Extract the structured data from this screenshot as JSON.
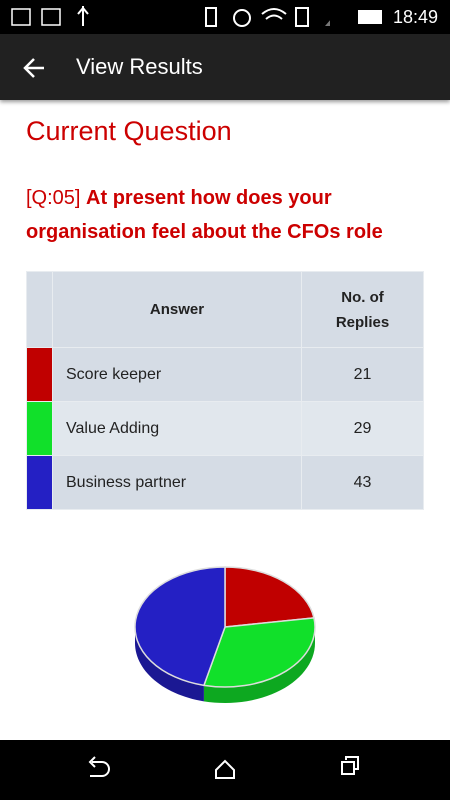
{
  "status_bar": {
    "time": "18:49"
  },
  "app_bar": {
    "title": "View Results"
  },
  "section_title": "Current Question",
  "question": {
    "prefix": "[Q:05]",
    "text": "At present how does your organisation feel about the CFOs role"
  },
  "table": {
    "headers": [
      "Answer",
      "No. of Replies"
    ],
    "rows": [
      {
        "answer": "Score keeper",
        "replies": 21,
        "color": "#c00000"
      },
      {
        "answer": "Value Adding",
        "replies": 29,
        "color": "#11e02a"
      },
      {
        "answer": "Business partner",
        "replies": 43,
        "color": "#2420c4"
      }
    ]
  },
  "chart_data": {
    "type": "pie"
  }
}
